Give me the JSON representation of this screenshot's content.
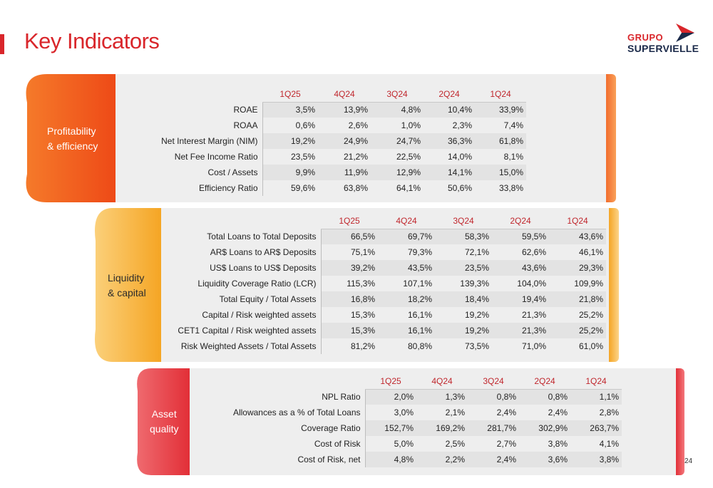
{
  "page": {
    "title": "Key Indicators",
    "number": "24"
  },
  "logo": {
    "line1": "GRUPO",
    "line2": "SUPERVIELLE"
  },
  "colors": {
    "brand_red": "#d9262b",
    "profitability": "#f25a1e",
    "liquidity": "#f7a823",
    "asset_quality": "#e8303a"
  },
  "periods": [
    "1Q25",
    "4Q24",
    "3Q24",
    "2Q24",
    "1Q24"
  ],
  "profitability": {
    "label_line1": "Profitability",
    "label_line2": "& efficiency",
    "rows": [
      {
        "label": "ROAE",
        "values": [
          "3,5%",
          "13,9%",
          "4,8%",
          "10,4%",
          "33,9%"
        ]
      },
      {
        "label": "ROAA",
        "values": [
          "0,6%",
          "2,6%",
          "1,0%",
          "2,3%",
          "7,4%"
        ]
      },
      {
        "label": "Net Interest Margin (NIM)",
        "values": [
          "19,2%",
          "24,9%",
          "24,7%",
          "36,3%",
          "61,8%"
        ]
      },
      {
        "label": "Net Fee Income Ratio",
        "values": [
          "23,5%",
          "21,2%",
          "22,5%",
          "14,0%",
          "8,1%"
        ]
      },
      {
        "label": "Cost / Assets",
        "values": [
          "9,9%",
          "11,9%",
          "12,9%",
          "14,1%",
          "15,0%"
        ]
      },
      {
        "label": "Efficiency Ratio",
        "values": [
          "59,6%",
          "63,8%",
          "64,1%",
          "50,6%",
          "33,8%"
        ]
      }
    ]
  },
  "liquidity": {
    "label_line1": "Liquidity",
    "label_line2": "& capital",
    "rows": [
      {
        "label": "Total Loans to Total Deposits",
        "values": [
          "66,5%",
          "69,7%",
          "58,3%",
          "59,5%",
          "43,6%"
        ]
      },
      {
        "label": "AR$ Loans to AR$ Deposits",
        "values": [
          "75,1%",
          "79,3%",
          "72,1%",
          "62,6%",
          "46,1%"
        ]
      },
      {
        "label": "US$ Loans to US$ Deposits",
        "values": [
          "39,2%",
          "43,5%",
          "23,5%",
          "43,6%",
          "29,3%"
        ]
      },
      {
        "label": "Liquidity Coverage Ratio (LCR)",
        "values": [
          "115,3%",
          "107,1%",
          "139,3%",
          "104,0%",
          "109,9%"
        ]
      },
      {
        "label": "Total Equity  / Total Assets",
        "values": [
          "16,8%",
          "18,2%",
          "18,4%",
          "19,4%",
          "21,8%"
        ]
      },
      {
        "label": "Capital / Risk weighted assets",
        "values": [
          "15,3%",
          "16,1%",
          "19,2%",
          "21,3%",
          "25,2%"
        ]
      },
      {
        "label": "CET1 Capital / Risk weighted assets",
        "values": [
          "15,3%",
          "16,1%",
          "19,2%",
          "21,3%",
          "25,2%"
        ]
      },
      {
        "label": "Risk Weighted Assets / Total Assets",
        "values": [
          "81,2%",
          "80,8%",
          "73,5%",
          "71,0%",
          "61,0%"
        ]
      }
    ]
  },
  "asset_quality": {
    "label_line1": "Asset",
    "label_line2": "quality",
    "rows": [
      {
        "label": "NPL Ratio",
        "values": [
          "2,0%",
          "1,3%",
          "0,8%",
          "0,8%",
          "1,1%"
        ]
      },
      {
        "label": "Allowances  as a % of Total Loans",
        "values": [
          "3,0%",
          "2,1%",
          "2,4%",
          "2,4%",
          "2,8%"
        ]
      },
      {
        "label": "Coverage Ratio",
        "values": [
          "152,7%",
          "169,2%",
          "281,7%",
          "302,9%",
          "263,7%"
        ]
      },
      {
        "label": "Cost of Risk",
        "values": [
          "5,0%",
          "2,5%",
          "2,7%",
          "3,8%",
          "4,1%"
        ]
      },
      {
        "label": "Cost of Risk, net",
        "values": [
          "4,8%",
          "2,2%",
          "2,4%",
          "3,6%",
          "3,8%"
        ]
      }
    ]
  }
}
